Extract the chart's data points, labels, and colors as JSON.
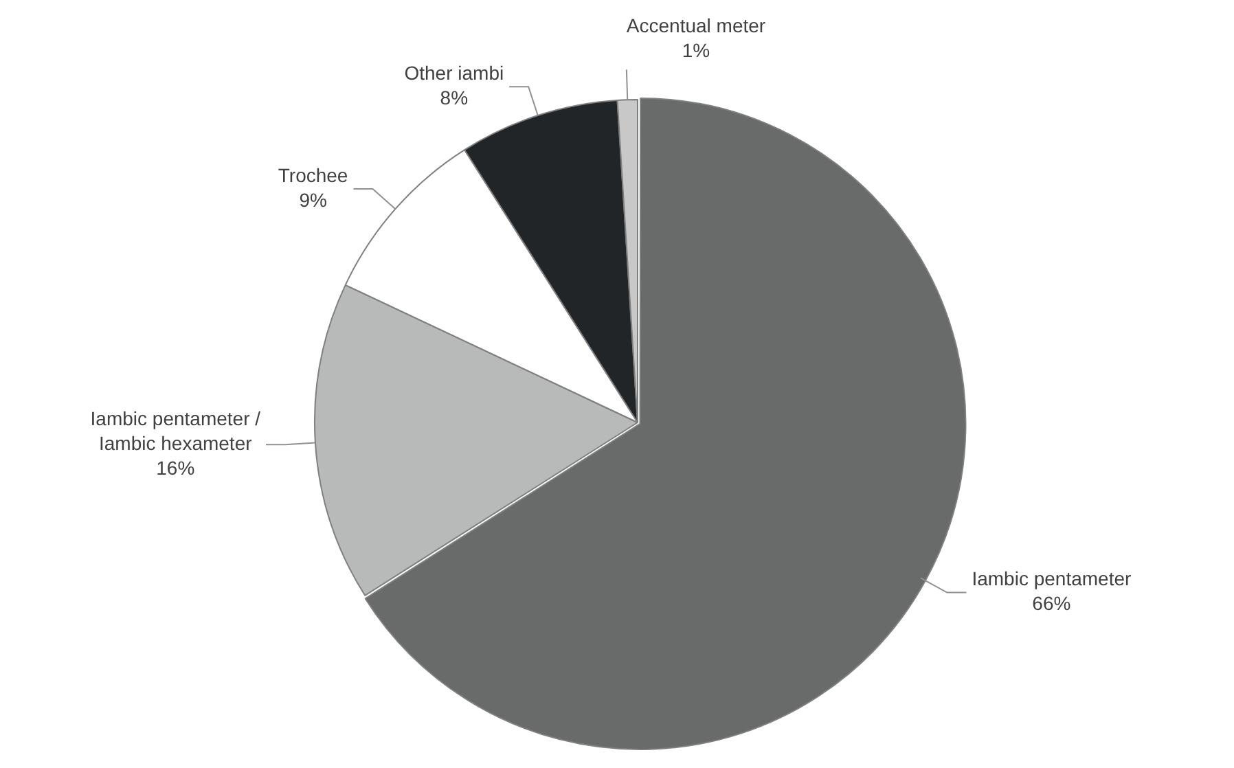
{
  "chart_data": {
    "type": "pie",
    "categories": [
      "Iambic pentameter",
      "Iambic pentameter / Iambic hexameter",
      "Trochee",
      "Other iambi",
      "Accentual meter"
    ],
    "values": [
      66,
      16,
      9,
      8,
      1
    ],
    "value_labels": [
      "66%",
      "16%",
      "9%",
      "8%",
      "1%"
    ],
    "colors": [
      "#696b6b",
      "#b8b9b9",
      "#ffffff",
      "#222528",
      "#c8c8c8"
    ],
    "legend": false
  }
}
